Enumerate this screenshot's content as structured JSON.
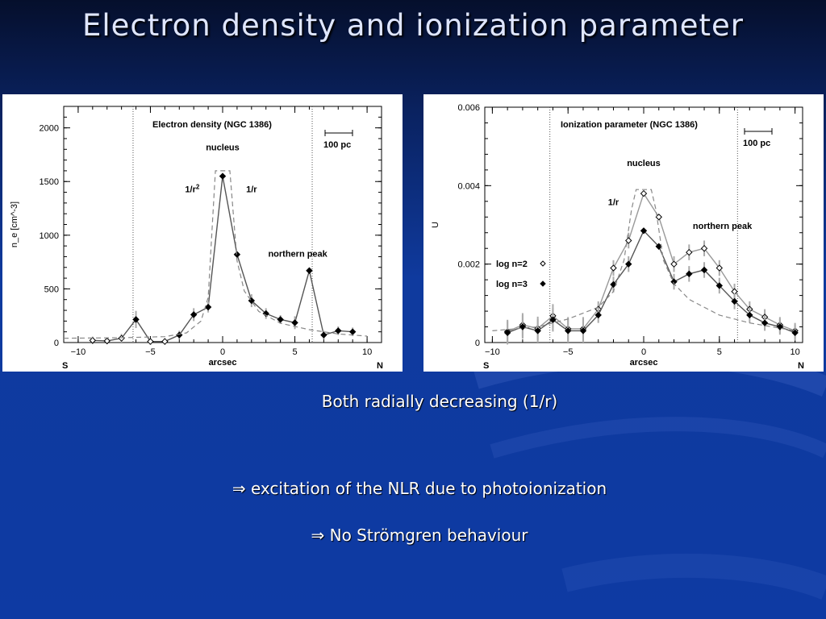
{
  "slide": {
    "title": "Electron density and ionization parameter",
    "text1": "Both radially decreasing (1/r)",
    "text2": "⇒ excitation of the NLR due to photoionization",
    "text3": "⇒ No Strömgren behaviour"
  },
  "chart_data": [
    {
      "type": "line",
      "title": "Electron density  (NGC 1386)",
      "xlabel": "arcsec",
      "ylabel": "n_e  [cm^-3]",
      "xlim": [
        -11,
        11
      ],
      "ylim": [
        0,
        2200
      ],
      "xticks": [
        -10,
        -5,
        0,
        5,
        10
      ],
      "yticks": [
        0,
        500,
        1000,
        1500,
        2000
      ],
      "xtick_labels": [
        "−10",
        "−5",
        "0",
        "5",
        "10"
      ],
      "ytick_labels": [
        "0",
        "500",
        "1000",
        "1500",
        "2000"
      ],
      "left_label": "S",
      "right_label": "N",
      "scalebar_label": "100  pc",
      "vlines": [
        -6.2,
        6.2
      ],
      "annotations": [
        {
          "text": "nucleus",
          "x": 0,
          "y": 1790
        },
        {
          "text": "1/r",
          "sup": "2",
          "x": -2.1,
          "y": 1400
        },
        {
          "text": "1/r",
          "x": 2.0,
          "y": 1400
        },
        {
          "text": "northern  peak",
          "x": 5.2,
          "y": 800
        }
      ],
      "series": [
        {
          "name": "",
          "style": "solid-markers",
          "x": [
            -9,
            -8,
            -7,
            -6,
            -5,
            -4,
            -3,
            -2,
            -1,
            0,
            1,
            2,
            3,
            4,
            5,
            6,
            7,
            8,
            9
          ],
          "y": [
            20,
            15,
            40,
            215,
            10,
            10,
            70,
            260,
            330,
            1550,
            820,
            390,
            270,
            215,
            185,
            670,
            70,
            110,
            100
          ],
          "err": [
            35,
            30,
            40,
            80,
            30,
            30,
            40,
            60,
            50,
            0,
            0,
            60,
            50,
            40,
            60,
            0,
            40,
            40,
            40
          ],
          "open": [
            true,
            true,
            true,
            false,
            true,
            true,
            false,
            false,
            false,
            false,
            false,
            false,
            false,
            false,
            false,
            false,
            false,
            false,
            false
          ]
        },
        {
          "name": "model",
          "style": "dashed",
          "x": [
            -11,
            -7,
            -4,
            -2.5,
            -1.5,
            -1.0,
            -0.5,
            0.5,
            1.0,
            1.5,
            2.5,
            4,
            6,
            8,
            10
          ],
          "y": [
            40,
            45,
            55,
            90,
            200,
            420,
            1600,
            1600,
            760,
            480,
            290,
            180,
            120,
            80,
            60
          ]
        }
      ]
    },
    {
      "type": "line",
      "title": "Ionization  parameter  (NGC  1386)",
      "xlabel": "arcsec",
      "ylabel": "U",
      "xlim": [
        -10.5,
        10.5
      ],
      "ylim": [
        0,
        0.006
      ],
      "xticks": [
        -10,
        -5,
        0,
        5,
        10
      ],
      "yticks": [
        0,
        0.002,
        0.004,
        0.006
      ],
      "xtick_labels": [
        "−10",
        "−5",
        "0",
        "5",
        "10"
      ],
      "ytick_labels": [
        "0",
        "0.002",
        "0.004",
        "0.006"
      ],
      "left_label": "S",
      "right_label": "N",
      "scalebar_label": "100  pc",
      "vlines": [
        -6.2,
        6.2
      ],
      "annotations": [
        {
          "text": "nucleus",
          "x": 0,
          "y": 0.0045
        },
        {
          "text": "1/r",
          "x": -2.0,
          "y": 0.0035
        },
        {
          "text": "northern  peak",
          "x": 5.2,
          "y": 0.0029
        }
      ],
      "legend": [
        {
          "label": "log  n=2",
          "marker": "open"
        },
        {
          "label": "log  n=3",
          "marker": "filled"
        }
      ],
      "series": [
        {
          "name": "log  n=2",
          "style": "open-markers",
          "x": [
            -9,
            -8,
            -7,
            -6,
            -5,
            -4,
            -3,
            -2,
            -1,
            0,
            1,
            2,
            3,
            4,
            5,
            6,
            7,
            8,
            9,
            10
          ],
          "y": [
            0.00028,
            0.00045,
            0.00036,
            0.00068,
            0.00035,
            0.00035,
            0.00085,
            0.0019,
            0.0026,
            0.0038,
            0.0032,
            0.002,
            0.0023,
            0.0024,
            0.0019,
            0.0013,
            0.00085,
            0.00065,
            0.00045,
            0.0003
          ],
          "err": [
            0.0003,
            0.0003,
            0.0003,
            0.0003,
            0.0003,
            0.0003,
            0.0002,
            0.0002,
            0.0002,
            0,
            0,
            0.0002,
            0.0002,
            0.0002,
            0.0002,
            0.0002,
            0.0002,
            0.0002,
            0.0002,
            0.0002
          ]
        },
        {
          "name": "log  n=3",
          "style": "filled-markers",
          "x": [
            -9,
            -8,
            -7,
            -6,
            -5,
            -4,
            -3,
            -2,
            -1,
            0,
            1,
            2,
            3,
            4,
            5,
            6,
            7,
            8,
            9,
            10
          ],
          "y": [
            0.00025,
            0.0004,
            0.0003,
            0.00058,
            0.0003,
            0.0003,
            0.0007,
            0.00148,
            0.002,
            0.00285,
            0.00245,
            0.00155,
            0.00175,
            0.00185,
            0.00145,
            0.00105,
            0.0007,
            0.0005,
            0.0004,
            0.00025
          ],
          "err": [
            0.0003,
            0.0003,
            0.0003,
            0.0003,
            0.0003,
            0.0003,
            0.0002,
            0.0002,
            0.0002,
            0,
            0,
            0.0002,
            0.0002,
            0.0002,
            0.0002,
            0.0002,
            0.0002,
            0.0002,
            0.0002,
            0.0002
          ]
        },
        {
          "name": "1/r model",
          "style": "dashed",
          "x": [
            -10,
            -7,
            -5,
            -3,
            -2,
            -1.3,
            -0.8,
            -0.5,
            0.5,
            0.8,
            1.3,
            2,
            3,
            5,
            7,
            10
          ],
          "y": [
            0.0003,
            0.0004,
            0.0006,
            0.0009,
            0.0013,
            0.0021,
            0.0034,
            0.0039,
            0.0039,
            0.0034,
            0.0021,
            0.0015,
            0.0011,
            0.0007,
            0.0005,
            0.0003
          ]
        }
      ]
    }
  ]
}
